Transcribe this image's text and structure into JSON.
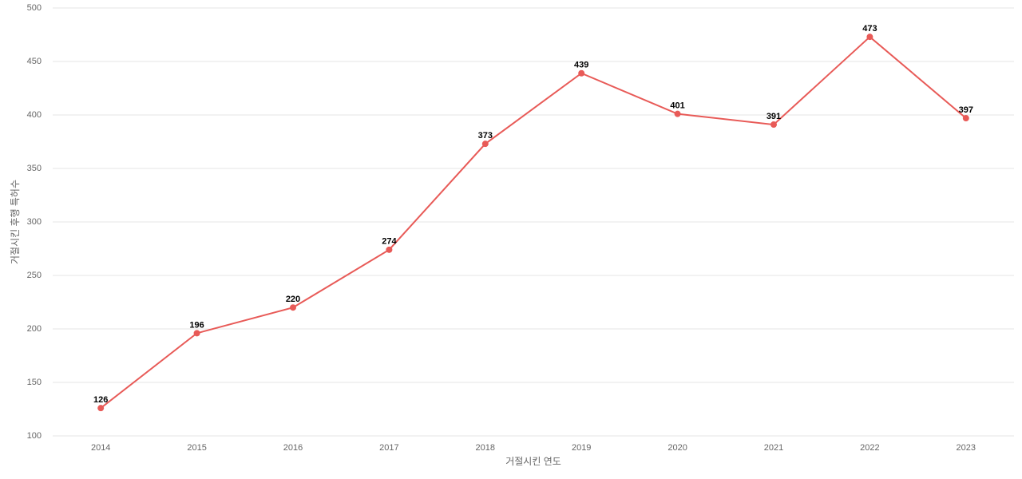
{
  "chart_data": {
    "type": "line",
    "x_label": "거절시킨 연도",
    "y_label": "거절시킨 후행 특허수",
    "categories": [
      "2014",
      "2015",
      "2016",
      "2017",
      "2018",
      "2019",
      "2020",
      "2021",
      "2022",
      "2023"
    ],
    "values": [
      126,
      196,
      220,
      274,
      373,
      439,
      401,
      391,
      473,
      397
    ],
    "color": "#e85a57",
    "ylim": [
      100,
      500
    ],
    "yticks": [
      100,
      150,
      200,
      250,
      300,
      350,
      400,
      450,
      500
    ],
    "grid": true
  }
}
